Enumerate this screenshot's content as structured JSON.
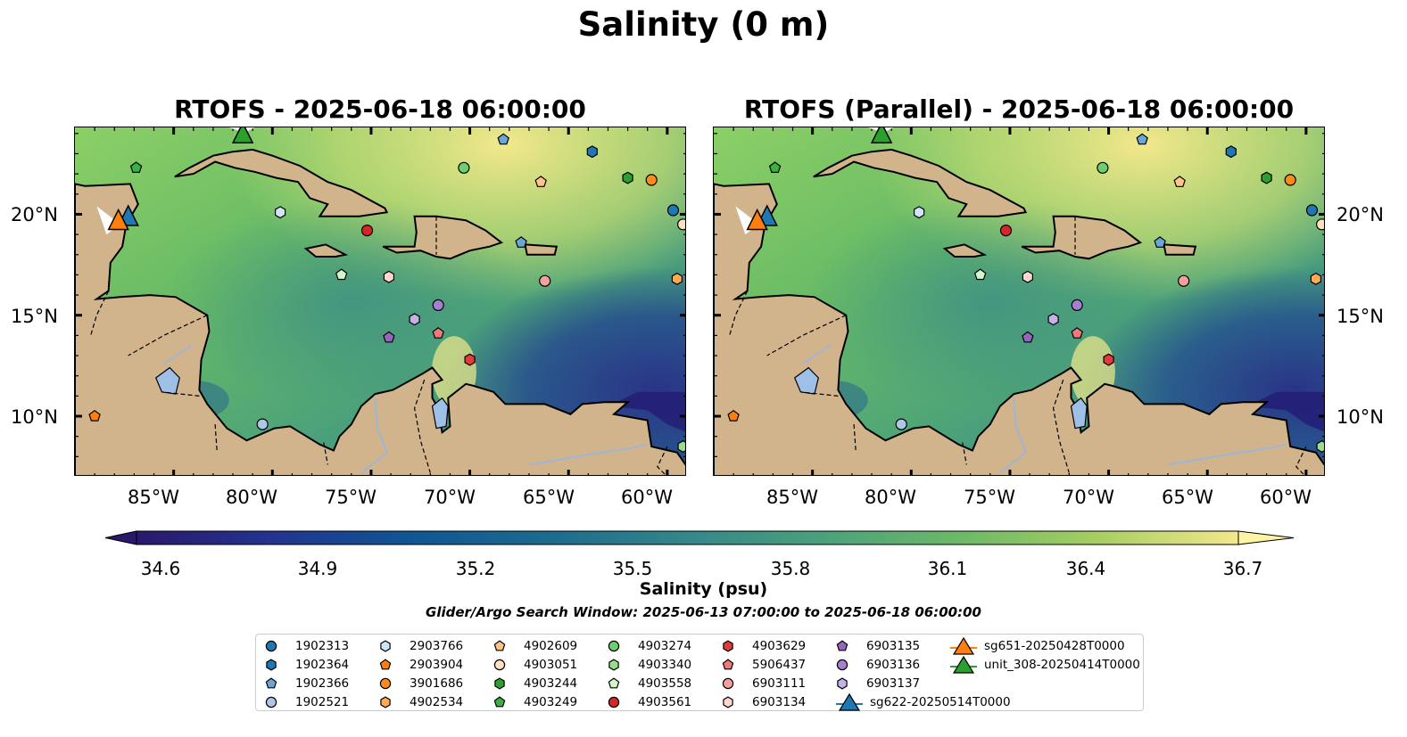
{
  "figure": {
    "title": "Salinity (0 m)",
    "panels": [
      {
        "title": "RTOFS - 2025-06-18 06:00:00"
      },
      {
        "title": "RTOFS (Parallel) - 2025-06-18 06:00:00"
      }
    ],
    "lat_ticks": [
      "20°N",
      "15°N",
      "10°N"
    ],
    "lon_ticks": [
      "85°W",
      "80°W",
      "75°W",
      "70°W",
      "65°W",
      "60°W"
    ],
    "colorbar": {
      "label": "Salinity (psu)",
      "ticks": [
        "34.6",
        "34.9",
        "35.2",
        "35.5",
        "35.8",
        "36.1",
        "36.4",
        "36.7"
      ],
      "colormap": "haline",
      "extend": "both"
    },
    "search_window": "Glider/Argo Search Window: 2025-06-13 07:00:00 to 2025-06-18 06:00:00",
    "colors": {
      "land": "#d2b48c",
      "lakes": "#9fc0e6",
      "rivers": "#9fb5d6",
      "deep_low": "#29196b"
    }
  },
  "legend": [
    {
      "label": "1902313",
      "marker": "circle",
      "color": "#1f77b4"
    },
    {
      "label": "1902364",
      "marker": "hexagon",
      "color": "#1f77b4"
    },
    {
      "label": "1902366",
      "marker": "pentagon",
      "color": "#6aa6d6"
    },
    {
      "label": "1902521",
      "marker": "circle",
      "color": "#aec7e8"
    },
    {
      "label": "2903766",
      "marker": "hexagon",
      "color": "#cfe6f7"
    },
    {
      "label": "2903904",
      "marker": "pentagon",
      "color": "#ff7f0e"
    },
    {
      "label": "3901686",
      "marker": "circle",
      "color": "#ff8c1a"
    },
    {
      "label": "4902534",
      "marker": "hexagon",
      "color": "#ffaa55"
    },
    {
      "label": "4902609",
      "marker": "pentagon",
      "color": "#ffc48a"
    },
    {
      "label": "4903051",
      "marker": "circle",
      "color": "#ffe0c0"
    },
    {
      "label": "4903244",
      "marker": "hexagon",
      "color": "#2ca02c"
    },
    {
      "label": "4903249",
      "marker": "pentagon",
      "color": "#3cb043"
    },
    {
      "label": "4903274",
      "marker": "circle",
      "color": "#6fcf6f"
    },
    {
      "label": "4903340",
      "marker": "hexagon",
      "color": "#98df8a"
    },
    {
      "label": "4903558",
      "marker": "pentagon",
      "color": "#d4f5cc"
    },
    {
      "label": "4903561",
      "marker": "circle",
      "color": "#d62728"
    },
    {
      "label": "4903629",
      "marker": "hexagon",
      "color": "#e03c3c"
    },
    {
      "label": "5906437",
      "marker": "pentagon",
      "color": "#f07878"
    },
    {
      "label": "6903111",
      "marker": "circle",
      "color": "#f4a0a0"
    },
    {
      "label": "6903134",
      "marker": "hexagon",
      "color": "#ffd6d0"
    },
    {
      "label": "6903135",
      "marker": "pentagon",
      "color": "#9467bd"
    },
    {
      "label": "6903136",
      "marker": "circle",
      "color": "#a57fd0"
    },
    {
      "label": "6903137",
      "marker": "hexagon",
      "color": "#c5b0e8"
    },
    {
      "label": "sg622-20250514T0000",
      "marker": "triangle-line",
      "color": "#1f77b4"
    },
    {
      "label": "sg651-20250428T0000",
      "marker": "triangle-line",
      "color": "#ff7f0e"
    },
    {
      "label": "unit_308-20250414T0000",
      "marker": "triangle-line",
      "color": "#2ca02c"
    }
  ]
}
